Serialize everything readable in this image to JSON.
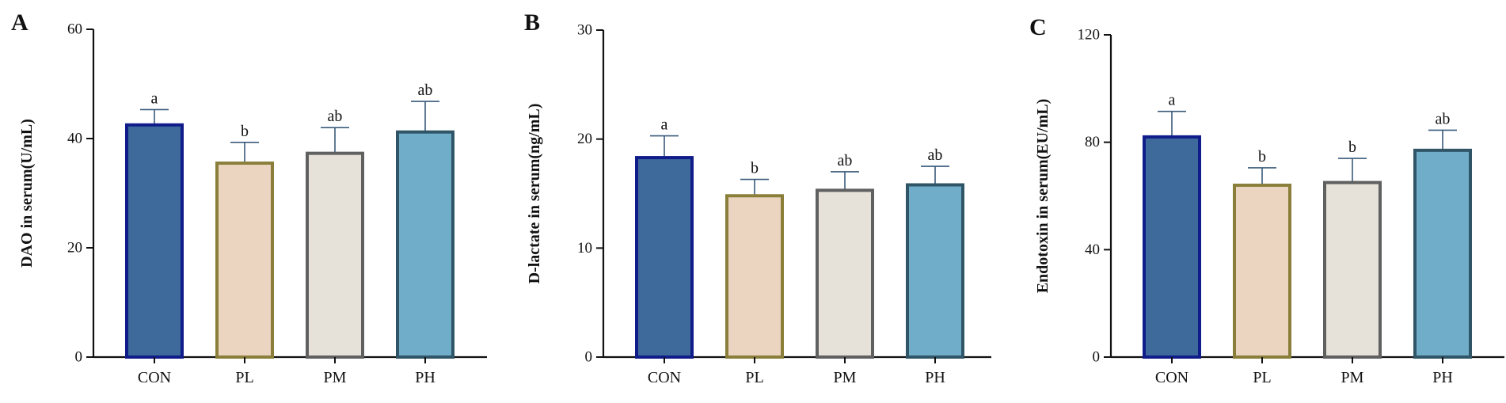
{
  "chart_data": [
    {
      "type": "bar",
      "panel_label": "A",
      "ylabel": "DAO in serum(U/mL)",
      "ylim": [
        0,
        60
      ],
      "yticks": [
        0,
        20,
        40,
        60
      ],
      "categories": [
        "CON",
        "PL",
        "PM",
        "PH"
      ],
      "values": [
        42.5,
        35.5,
        37.3,
        41.2
      ],
      "errors": [
        2.8,
        3.8,
        4.7,
        5.6
      ],
      "significance": [
        "a",
        "b",
        "ab",
        "ab"
      ],
      "grid": false
    },
    {
      "type": "bar",
      "panel_label": "B",
      "ylabel": "D-lactate in serum(ng/mL)",
      "ylim": [
        0,
        30
      ],
      "yticks": [
        0,
        10,
        20,
        30
      ],
      "categories": [
        "CON",
        "PL",
        "PM",
        "PH"
      ],
      "values": [
        18.3,
        14.8,
        15.3,
        15.8
      ],
      "errors": [
        2.0,
        1.5,
        1.7,
        1.7
      ],
      "significance": [
        "a",
        "b",
        "ab",
        "ab"
      ],
      "grid": false
    },
    {
      "type": "bar",
      "panel_label": "C",
      "ylabel": "Endotoxin in serum(EU/mL)",
      "ylim": [
        0,
        120
      ],
      "yticks": [
        0,
        40,
        80,
        120
      ],
      "categories": [
        "CON",
        "PL",
        "PM",
        "PH"
      ],
      "values": [
        82,
        64,
        65,
        77
      ],
      "errors": [
        9.5,
        6.5,
        9.0,
        7.5
      ],
      "significance": [
        "a",
        "b",
        "b",
        "ab"
      ],
      "grid": false
    }
  ],
  "style": {
    "bar_fills": [
      "#3d6a9a",
      "#ebd5c1",
      "#e6e2da",
      "#6fadc9"
    ],
    "bar_strokes": [
      "#101c8a",
      "#8a7f3a",
      "#606060",
      "#2f5566"
    ],
    "error_color": "#3a5a7a",
    "axis_color": "#111111"
  }
}
